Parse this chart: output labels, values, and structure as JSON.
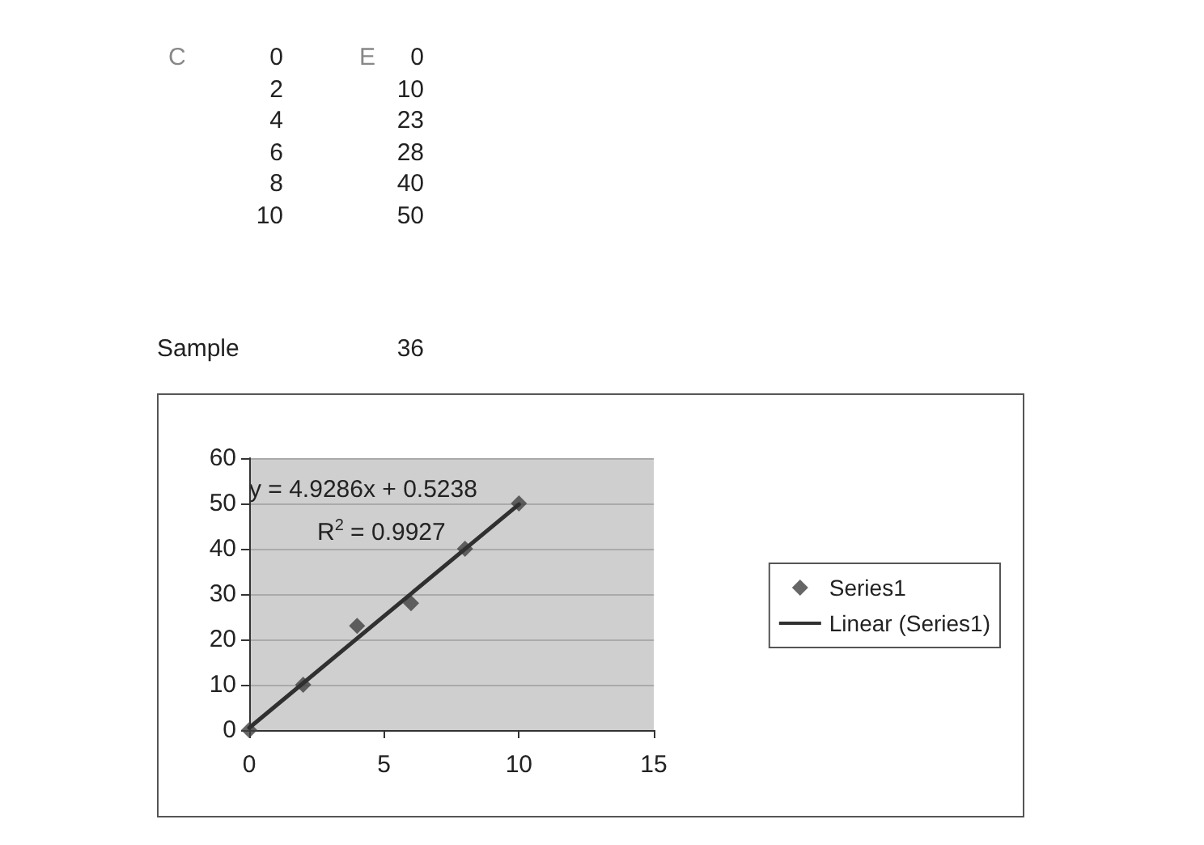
{
  "chart_data": {
    "type": "scatter",
    "x": [
      0,
      2,
      4,
      6,
      8,
      10
    ],
    "series": [
      {
        "name": "Series1",
        "color": "#404040",
        "marker": "diamond",
        "values": [
          0,
          10,
          23,
          28,
          40,
          50
        ]
      },
      {
        "name": "Linear (Series1)",
        "type": "line",
        "color": "#303030",
        "marker": "none",
        "x": [
          0,
          10
        ],
        "values": [
          0.5,
          49.8
        ]
      }
    ],
    "xlim": [
      0,
      15
    ],
    "xticks": [
      0,
      5,
      10,
      15
    ],
    "ylim": [
      0,
      60
    ],
    "yticks": [
      0,
      10,
      20,
      30,
      40,
      50,
      60
    ],
    "grid": "y",
    "legend": "right",
    "annotations": [
      "y = 4.9286x + 0.5238",
      "R$^{2}$ = 0.9927",
      "C",
      "E",
      "0",
      "0",
      "2",
      "10",
      "4",
      "23",
      "6",
      "28",
      "8",
      "40",
      "10",
      "50",
      "Sample",
      "36"
    ]
  }
}
